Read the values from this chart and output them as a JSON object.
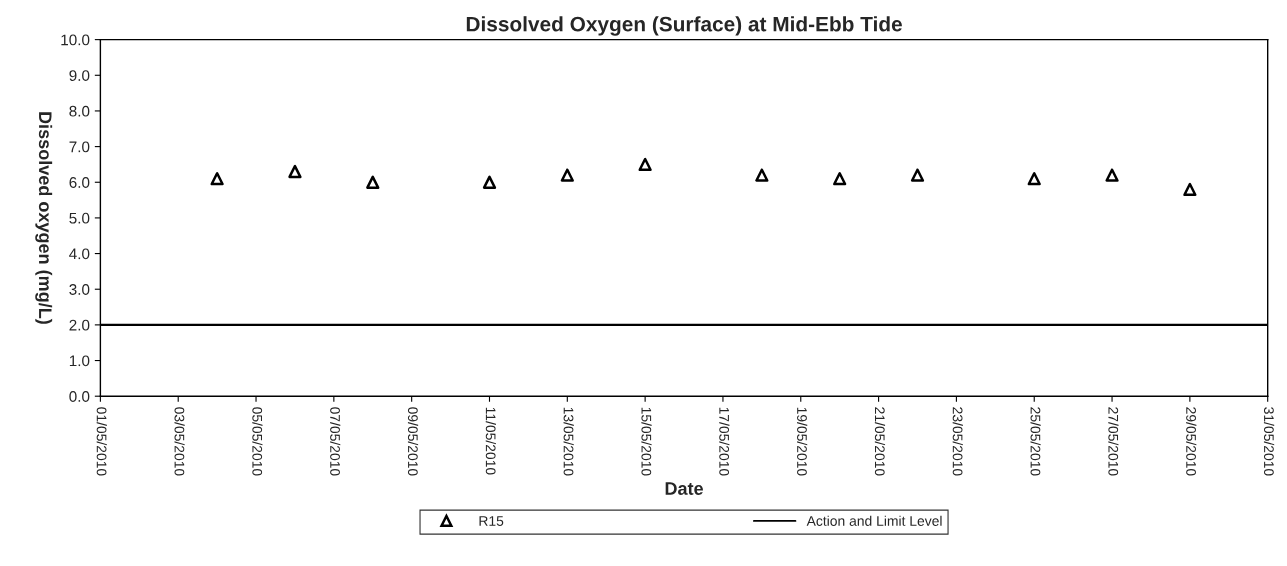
{
  "chart_data": {
    "type": "scatter",
    "title": "Dissolved Oxygen (Surface) at Mid-Ebb Tide",
    "xlabel": "Date",
    "ylabel": "Dissolved oxygen (mg/L)",
    "x": [
      "2010-05-04",
      "2010-05-06",
      "2010-05-08",
      "2010-05-11",
      "2010-05-13",
      "2010-05-15",
      "2010-05-18",
      "2010-05-20",
      "2010-05-22",
      "2010-05-25",
      "2010-05-27",
      "2010-05-29"
    ],
    "series": [
      {
        "name": "R15",
        "color": "#000000",
        "values": [
          6.1,
          6.3,
          6.0,
          6.0,
          6.2,
          6.5,
          6.2,
          6.1,
          6.2,
          6.1,
          6.2,
          5.8
        ]
      }
    ],
    "marker": "triangle",
    "ref_lines": [
      {
        "axis": "y",
        "value": 2.0,
        "label": "Action and Limit Level",
        "color": "#000000",
        "line_style": "solid"
      }
    ],
    "xlim": [
      "2010-05-01",
      "2010-05-31"
    ],
    "xticks": [
      {
        "value": "2010-05-01",
        "label": "01/05/2010"
      },
      {
        "value": "2010-05-03",
        "label": "03/05/2010"
      },
      {
        "value": "2010-05-05",
        "label": "05/05/2010"
      },
      {
        "value": "2010-05-07",
        "label": "07/05/2010"
      },
      {
        "value": "2010-05-09",
        "label": "09/05/2010"
      },
      {
        "value": "2010-05-11",
        "label": "11/05/2010"
      },
      {
        "value": "2010-05-13",
        "label": "13/05/2010"
      },
      {
        "value": "2010-05-15",
        "label": "15/05/2010"
      },
      {
        "value": "2010-05-17",
        "label": "17/05/2010"
      },
      {
        "value": "2010-05-19",
        "label": "19/05/2010"
      },
      {
        "value": "2010-05-21",
        "label": "21/05/2010"
      },
      {
        "value": "2010-05-23",
        "label": "23/05/2010"
      },
      {
        "value": "2010-05-25",
        "label": "25/05/2010"
      },
      {
        "value": "2010-05-27",
        "label": "27/05/2010"
      },
      {
        "value": "2010-05-29",
        "label": "29/05/2010"
      },
      {
        "value": "2010-05-31",
        "label": "31/05/2010"
      }
    ],
    "ylim": [
      0,
      10
    ],
    "yticks": [
      {
        "value": 0,
        "label": "0.0"
      },
      {
        "value": 1,
        "label": "1.0"
      },
      {
        "value": 2,
        "label": "2.0"
      },
      {
        "value": 3,
        "label": "3.0"
      },
      {
        "value": 4,
        "label": "4.0"
      },
      {
        "value": 5,
        "label": "5.0"
      },
      {
        "value": 6,
        "label": "6.0"
      },
      {
        "value": 7,
        "label": "7.0"
      },
      {
        "value": 8,
        "label": "8.0"
      },
      {
        "value": 9,
        "label": "9.0"
      },
      {
        "value": 10,
        "label": "10.0"
      }
    ],
    "grid": false,
    "legend": "bottom"
  }
}
